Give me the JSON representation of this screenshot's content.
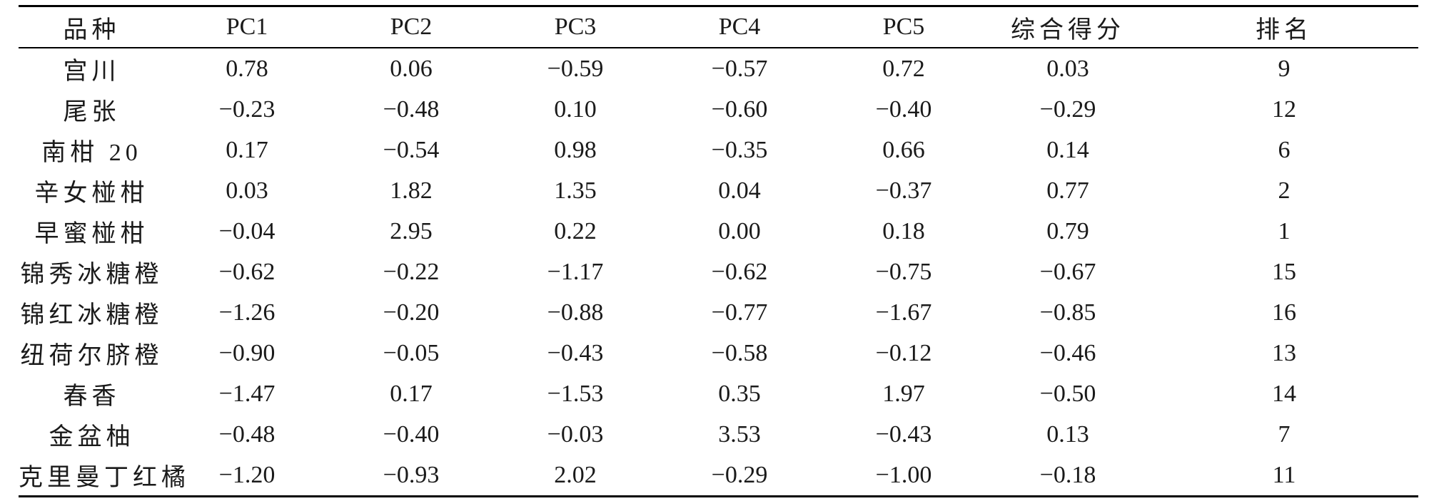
{
  "table": {
    "headers": [
      "品种",
      "PC1",
      "PC2",
      "PC3",
      "PC4",
      "PC5",
      "综合得分",
      "排名"
    ],
    "rows": [
      [
        "宫川",
        "0.78",
        "0.06",
        "−0.59",
        "−0.57",
        "0.72",
        "0.03",
        "9"
      ],
      [
        "尾张",
        "−0.23",
        "−0.48",
        "0.10",
        "−0.60",
        "−0.40",
        "−0.29",
        "12"
      ],
      [
        "南柑 20",
        "0.17",
        "−0.54",
        "0.98",
        "−0.35",
        "0.66",
        "0.14",
        "6"
      ],
      [
        "辛女椪柑",
        "0.03",
        "1.82",
        "1.35",
        "0.04",
        "−0.37",
        "0.77",
        "2"
      ],
      [
        "早蜜椪柑",
        "−0.04",
        "2.95",
        "0.22",
        "0.00",
        "0.18",
        "0.79",
        "1"
      ],
      [
        "锦秀冰糖橙",
        "−0.62",
        "−0.22",
        "−1.17",
        "−0.62",
        "−0.75",
        "−0.67",
        "15"
      ],
      [
        "锦红冰糖橙",
        "−1.26",
        "−0.20",
        "−0.88",
        "−0.77",
        "−1.67",
        "−0.85",
        "16"
      ],
      [
        "纽荷尔脐橙",
        "−0.90",
        "−0.05",
        "−0.43",
        "−0.58",
        "−0.12",
        "−0.46",
        "13"
      ],
      [
        "春香",
        "−1.47",
        "0.17",
        "−1.53",
        "0.35",
        "1.97",
        "−0.50",
        "14"
      ],
      [
        "金盆柚",
        "−0.48",
        "−0.40",
        "−0.03",
        "3.53",
        "−0.43",
        "0.13",
        "7"
      ],
      [
        "克里曼丁红橘",
        "−1.20",
        "−0.93",
        "2.02",
        "−0.29",
        "−1.00",
        "−0.18",
        "11"
      ]
    ]
  }
}
